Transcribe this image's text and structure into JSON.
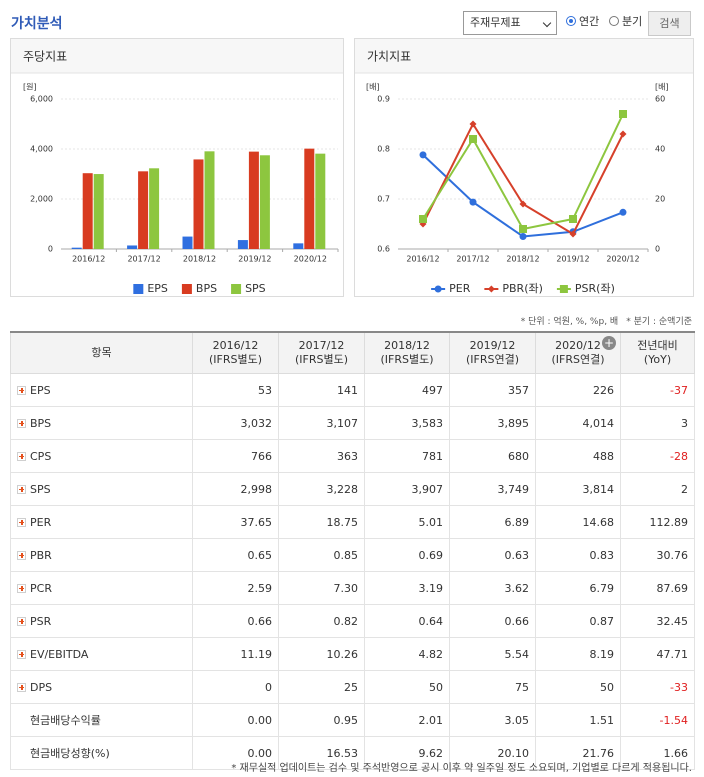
{
  "header": {
    "title": "가치분석",
    "select": "주재무제표",
    "radios": [
      "연간",
      "분기"
    ],
    "button": "검색"
  },
  "chart_data": [
    {
      "type": "bar",
      "title": "주당지표",
      "y_label": "[원]",
      "categories": [
        "2016/12",
        "2017/12",
        "2018/12",
        "2019/12",
        "2020/12"
      ],
      "series": [
        {
          "name": "EPS",
          "color": "#2f6fe0",
          "values": [
            53,
            141,
            497,
            357,
            226
          ]
        },
        {
          "name": "BPS",
          "color": "#d83b20",
          "values": [
            3032,
            3107,
            3583,
            3895,
            4014
          ]
        },
        {
          "name": "SPS",
          "color": "#8dc63f",
          "values": [
            2998,
            3228,
            3907,
            3749,
            3814
          ]
        }
      ],
      "ylim": [
        0,
        6000
      ],
      "yticks": [
        0,
        {
          "value": 2000,
          "label": "2,000"
        },
        {
          "value": 4000,
          "label": "4,000"
        },
        {
          "value": 6000,
          "label": "6,000"
        }
      ],
      "grid": true,
      "legend": "bottom"
    },
    {
      "type": "line",
      "title": "가치지표",
      "y_label": "[배]",
      "y2_label": "[배]",
      "categories": [
        "2016/12",
        "2017/12",
        "2018/12",
        "2019/12",
        "2020/12"
      ],
      "series": [
        {
          "name": "PER",
          "color": "#2f6fdc",
          "marker": "circle",
          "axis": "y2",
          "values": [
            37.65,
            18.75,
            5.01,
            6.89,
            14.68
          ]
        },
        {
          "name": "PBR(좌)",
          "color": "#d6402a",
          "marker": "diamond",
          "values": [
            0.65,
            0.85,
            0.69,
            0.63,
            0.83
          ]
        },
        {
          "name": "PSR(좌)",
          "color": "#8dc63f",
          "marker": "square",
          "values": [
            0.66,
            0.82,
            0.64,
            0.66,
            0.87
          ]
        }
      ],
      "ylim": [
        0.6,
        0.9
      ],
      "yticks": [
        0.6,
        0.7,
        0.8,
        0.9
      ],
      "y2lim": [
        0,
        60
      ],
      "y2ticks": [
        0,
        20,
        40,
        60
      ],
      "grid": true,
      "legend": "bottom"
    }
  ],
  "notes": [
    "* 단위 : 억원, %, %p, 배",
    "* 분기 : 순액기준"
  ],
  "table": {
    "headers": [
      {
        "period": "항목"
      },
      {
        "period": "2016/12",
        "basis": "(IFRS별도)"
      },
      {
        "period": "2017/12",
        "basis": "(IFRS별도)"
      },
      {
        "period": "2018/12",
        "basis": "(IFRS별도)"
      },
      {
        "period": "2019/12",
        "basis": "(IFRS연결)"
      },
      {
        "period": "2020/12",
        "basis": "(IFRS연결)"
      },
      {
        "period": "전년대비",
        "basis": "(YoY)"
      }
    ],
    "rows": [
      {
        "label": "EPS",
        "icon": true,
        "values": [
          "53",
          "141",
          "497",
          "357",
          "226",
          "-37"
        ]
      },
      {
        "label": "BPS",
        "icon": true,
        "values": [
          "3,032",
          "3,107",
          "3,583",
          "3,895",
          "4,014",
          "3"
        ]
      },
      {
        "label": "CPS",
        "icon": true,
        "values": [
          "766",
          "363",
          "781",
          "680",
          "488",
          "-28"
        ]
      },
      {
        "label": "SPS",
        "icon": true,
        "values": [
          "2,998",
          "3,228",
          "3,907",
          "3,749",
          "3,814",
          "2"
        ]
      },
      {
        "label": "PER",
        "icon": true,
        "values": [
          "37.65",
          "18.75",
          "5.01",
          "6.89",
          "14.68",
          "112.89"
        ]
      },
      {
        "label": "PBR",
        "icon": true,
        "values": [
          "0.65",
          "0.85",
          "0.69",
          "0.63",
          "0.83",
          "30.76"
        ]
      },
      {
        "label": "PCR",
        "icon": true,
        "values": [
          "2.59",
          "7.30",
          "3.19",
          "3.62",
          "6.79",
          "87.69"
        ]
      },
      {
        "label": "PSR",
        "icon": true,
        "values": [
          "0.66",
          "0.82",
          "0.64",
          "0.66",
          "0.87",
          "32.45"
        ]
      },
      {
        "label": "EV/EBITDA",
        "icon": true,
        "values": [
          "11.19",
          "10.26",
          "4.82",
          "5.54",
          "8.19",
          "47.71"
        ]
      },
      {
        "label": "DPS",
        "icon": true,
        "values": [
          "0",
          "25",
          "50",
          "75",
          "50",
          "-33"
        ]
      },
      {
        "label": "현금배당수익률",
        "icon": false,
        "values": [
          "0.00",
          "0.95",
          "2.01",
          "3.05",
          "1.51",
          "-1.54"
        ]
      },
      {
        "label": "현금배당성향(%)",
        "icon": false,
        "values": [
          "0.00",
          "16.53",
          "9.62",
          "20.10",
          "21.76",
          "1.66"
        ]
      }
    ]
  },
  "footer": "* 재무실적 업데이트는 검수 및 주석반영으로 공시 이후 약 일주일 정도 소요되며, 기업별로 다르게 적용됩니다."
}
